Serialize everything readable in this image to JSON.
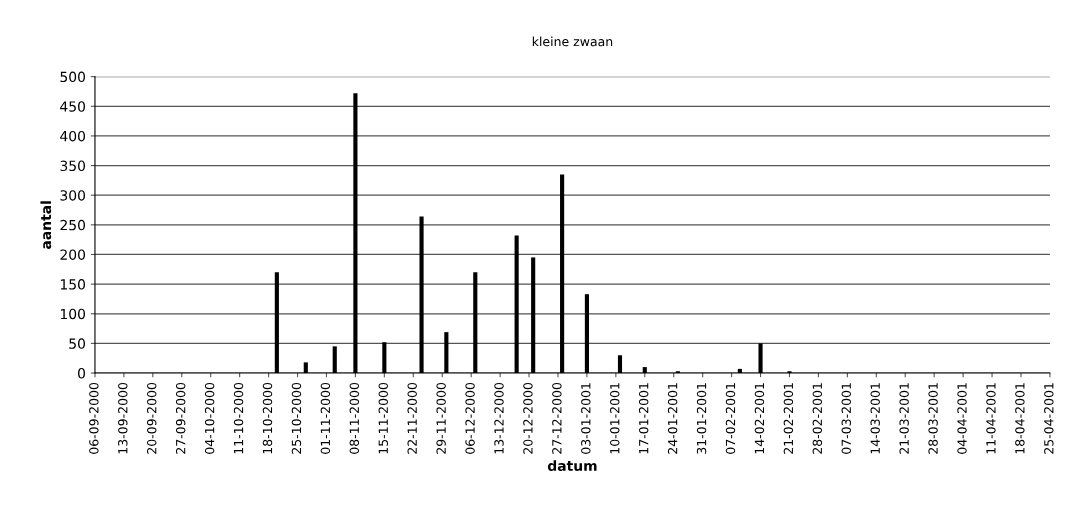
{
  "chart_data": {
    "type": "bar",
    "title": "kleine zwaan",
    "xlabel": "datum",
    "ylabel": "aantal",
    "x": [
      "2000-10-20",
      "2000-10-27",
      "2000-11-03",
      "2000-11-08",
      "2000-11-15",
      "2000-11-24",
      "2000-11-30",
      "2000-12-07",
      "2000-12-17",
      "2000-12-21",
      "2000-12-28",
      "2001-01-03",
      "2001-01-11",
      "2001-01-17",
      "2001-01-25",
      "2001-02-09",
      "2001-02-14",
      "2001-02-21"
    ],
    "values": [
      170,
      18,
      45,
      472,
      52,
      264,
      69,
      170,
      232,
      195,
      335,
      133,
      30,
      10,
      3,
      7,
      50,
      3
    ],
    "color": "#000000",
    "xlim": [
      "2000-09-06",
      "2001-04-25"
    ],
    "xticks": [
      {
        "value": "2000-09-06",
        "label": "06-09-2000"
      },
      {
        "value": "2000-09-13",
        "label": "13-09-2000"
      },
      {
        "value": "2000-09-20",
        "label": "20-09-2000"
      },
      {
        "value": "2000-09-27",
        "label": "27-09-2000"
      },
      {
        "value": "2000-10-04",
        "label": "04-10-2000"
      },
      {
        "value": "2000-10-11",
        "label": "11-10-2000"
      },
      {
        "value": "2000-10-18",
        "label": "18-10-2000"
      },
      {
        "value": "2000-10-25",
        "label": "25-10-2000"
      },
      {
        "value": "2000-11-01",
        "label": "01-11-2000"
      },
      {
        "value": "2000-11-08",
        "label": "08-11-2000"
      },
      {
        "value": "2000-11-15",
        "label": "15-11-2000"
      },
      {
        "value": "2000-11-22",
        "label": "22-11-2000"
      },
      {
        "value": "2000-11-29",
        "label": "29-11-2000"
      },
      {
        "value": "2000-12-06",
        "label": "06-12-2000"
      },
      {
        "value": "2000-12-13",
        "label": "13-12-2000"
      },
      {
        "value": "2000-12-20",
        "label": "20-12-2000"
      },
      {
        "value": "2000-12-27",
        "label": "27-12-2000"
      },
      {
        "value": "2001-01-03",
        "label": "03-01-2001"
      },
      {
        "value": "2001-01-10",
        "label": "10-01-2001"
      },
      {
        "value": "2001-01-17",
        "label": "17-01-2001"
      },
      {
        "value": "2001-01-24",
        "label": "24-01-2001"
      },
      {
        "value": "2001-01-31",
        "label": "31-01-2001"
      },
      {
        "value": "2001-02-07",
        "label": "07-02-2001"
      },
      {
        "value": "2001-02-14",
        "label": "14-02-2001"
      },
      {
        "value": "2001-02-21",
        "label": "21-02-2001"
      },
      {
        "value": "2001-02-28",
        "label": "28-02-2001"
      },
      {
        "value": "2001-03-07",
        "label": "07-03-2001"
      },
      {
        "value": "2001-03-14",
        "label": "14-03-2001"
      },
      {
        "value": "2001-03-21",
        "label": "21-03-2001"
      },
      {
        "value": "2001-03-28",
        "label": "28-03-2001"
      },
      {
        "value": "2001-04-04",
        "label": "04-04-2001"
      },
      {
        "value": "2001-04-11",
        "label": "11-04-2001"
      },
      {
        "value": "2001-04-18",
        "label": "18-04-2001"
      },
      {
        "value": "2001-04-25",
        "label": "25-04-2001"
      }
    ],
    "ylim": [
      0,
      500
    ],
    "yticks": [
      0,
      50,
      100,
      150,
      200,
      250,
      300,
      350,
      400,
      450,
      500
    ],
    "grid": "y"
  }
}
